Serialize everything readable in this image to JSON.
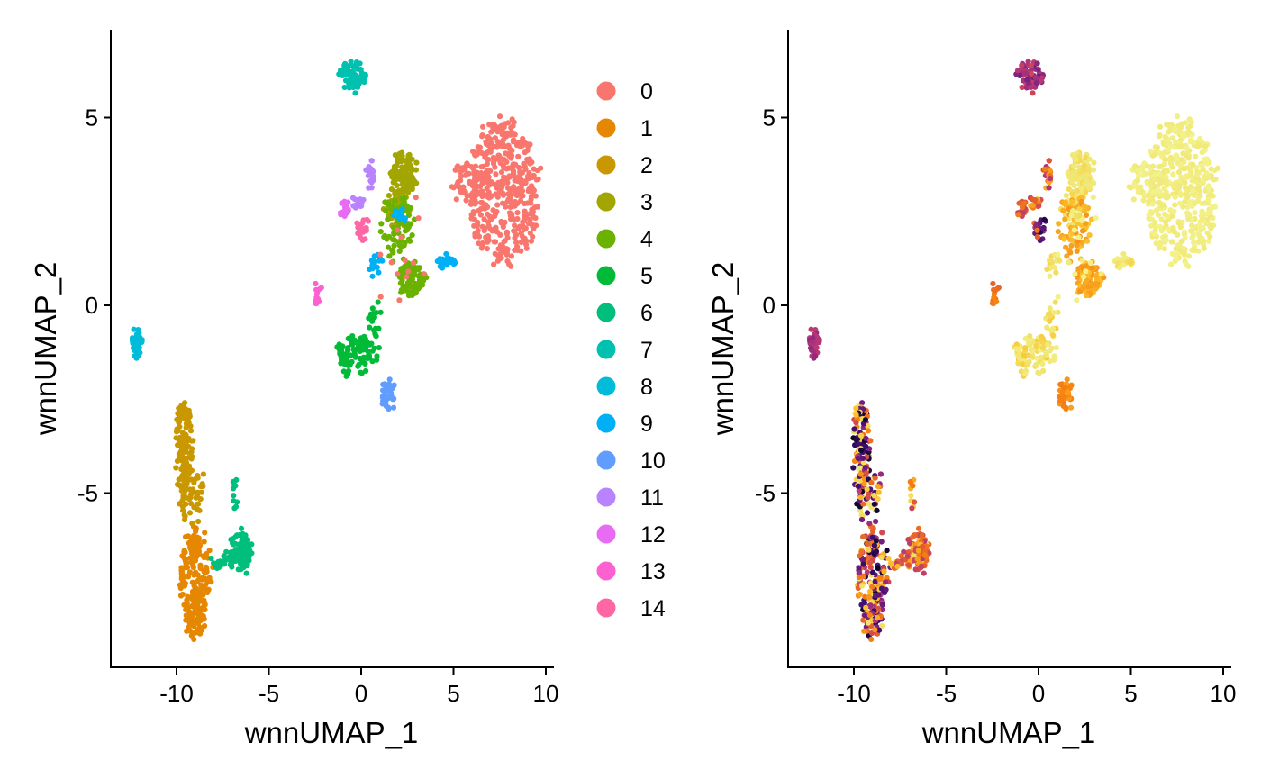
{
  "chart_data": [
    {
      "type": "scatter",
      "panel": "left",
      "color_by": "cluster",
      "xlabel": "wnnUMAP_1",
      "ylabel": "wnnUMAP_2",
      "xlim": [
        -13.8,
        10.6
      ],
      "ylim": [
        -9.7,
        7.3
      ],
      "xticks": [
        -10,
        -5,
        0,
        5,
        10
      ],
      "yticks": [
        -5,
        0,
        5
      ],
      "xtick_labels": [
        "-10",
        "-5",
        "0",
        "5",
        "10"
      ],
      "ytick_labels": [
        "-5",
        "0",
        "5"
      ],
      "grid": false,
      "legend_position": "right",
      "legend": [
        {
          "label": "0",
          "color": "#F8766D"
        },
        {
          "label": "1",
          "color": "#E58700"
        },
        {
          "label": "2",
          "color": "#C99800"
        },
        {
          "label": "3",
          "color": "#A3A500"
        },
        {
          "label": "4",
          "color": "#6BB100"
        },
        {
          "label": "5",
          "color": "#00BA38"
        },
        {
          "label": "6",
          "color": "#00BF7D"
        },
        {
          "label": "7",
          "color": "#00C0AF"
        },
        {
          "label": "8",
          "color": "#00BCD8"
        },
        {
          "label": "9",
          "color": "#00B0F6"
        },
        {
          "label": "10",
          "color": "#619CFF"
        },
        {
          "label": "11",
          "color": "#B983FF"
        },
        {
          "label": "12",
          "color": "#E76BF3"
        },
        {
          "label": "13",
          "color": "#FD61D1"
        },
        {
          "label": "14",
          "color": "#FF67A4"
        }
      ],
      "clusters": [
        {
          "cluster": "0",
          "cx": 7.7,
          "cy": 3.0,
          "rx": 1.9,
          "ry": 1.9,
          "n": 420
        },
        {
          "cluster": "0",
          "cx": 5.8,
          "cy": 3.3,
          "rx": 1.0,
          "ry": 0.55,
          "n": 60
        },
        {
          "cluster": "1",
          "cx": -9.0,
          "cy": -7.2,
          "rx": 0.85,
          "ry": 1.35,
          "n": 180
        },
        {
          "cluster": "1",
          "cx": -9.0,
          "cy": -8.4,
          "rx": 0.5,
          "ry": 0.45,
          "n": 40
        },
        {
          "cluster": "2",
          "cx": -9.6,
          "cy": -3.7,
          "rx": 0.5,
          "ry": 1.2,
          "n": 110
        },
        {
          "cluster": "2",
          "cx": -9.2,
          "cy": -5.0,
          "rx": 0.65,
          "ry": 0.8,
          "n": 60
        },
        {
          "cluster": "3",
          "cx": 2.3,
          "cy": 3.5,
          "rx": 0.7,
          "ry": 0.6,
          "n": 110
        },
        {
          "cluster": "3",
          "cx": 2.0,
          "cy": 2.6,
          "rx": 0.8,
          "ry": 0.5,
          "n": 40
        },
        {
          "cluster": "4",
          "cx": 2.7,
          "cy": 0.7,
          "rx": 0.8,
          "ry": 0.45,
          "n": 90
        },
        {
          "cluster": "4",
          "cx": 1.9,
          "cy": 2.1,
          "rx": 0.9,
          "ry": 0.9,
          "n": 70
        },
        {
          "cluster": "5",
          "cx": -0.3,
          "cy": -1.3,
          "rx": 1.0,
          "ry": 0.55,
          "n": 100
        },
        {
          "cluster": "5",
          "cx": 0.8,
          "cy": -0.6,
          "rx": 0.3,
          "ry": 0.6,
          "n": 20
        },
        {
          "cluster": "6",
          "cx": -6.5,
          "cy": -6.5,
          "rx": 0.55,
          "ry": 0.55,
          "n": 80
        },
        {
          "cluster": "6",
          "cx": -7.5,
          "cy": -6.8,
          "rx": 0.6,
          "ry": 0.25,
          "n": 25
        },
        {
          "cluster": "6",
          "cx": -6.9,
          "cy": -5.2,
          "rx": 0.15,
          "ry": 0.6,
          "n": 10
        },
        {
          "cluster": "7",
          "cx": -0.5,
          "cy": 6.1,
          "rx": 0.7,
          "ry": 0.4,
          "n": 80
        },
        {
          "cluster": "8",
          "cx": -12.2,
          "cy": -1.0,
          "rx": 0.3,
          "ry": 0.4,
          "n": 35
        },
        {
          "cluster": "9",
          "cx": 4.6,
          "cy": 1.15,
          "rx": 0.5,
          "ry": 0.15,
          "n": 25
        },
        {
          "cluster": "9",
          "cx": 0.8,
          "cy": 1.1,
          "rx": 0.3,
          "ry": 0.3,
          "n": 15
        },
        {
          "cluster": "9",
          "cx": 2.2,
          "cy": 2.4,
          "rx": 0.4,
          "ry": 0.2,
          "n": 15
        },
        {
          "cluster": "10",
          "cx": 1.5,
          "cy": -2.4,
          "rx": 0.4,
          "ry": 0.35,
          "n": 40
        },
        {
          "cluster": "11",
          "cx": 0.5,
          "cy": 3.5,
          "rx": 0.25,
          "ry": 0.35,
          "n": 20
        },
        {
          "cluster": "11",
          "cx": -0.2,
          "cy": 2.7,
          "rx": 0.3,
          "ry": 0.2,
          "n": 15
        },
        {
          "cluster": "12",
          "cx": -0.9,
          "cy": 2.6,
          "rx": 0.3,
          "ry": 0.25,
          "n": 25
        },
        {
          "cluster": "13",
          "cx": -2.3,
          "cy": 0.3,
          "rx": 0.25,
          "ry": 0.3,
          "n": 12
        },
        {
          "cluster": "14",
          "cx": 0.1,
          "cy": 2.0,
          "rx": 0.3,
          "ry": 0.3,
          "n": 25
        },
        {
          "cluster": "0",
          "cx": 2.0,
          "cy": 1.6,
          "rx": 1.8,
          "ry": 1.6,
          "n": 14
        }
      ]
    },
    {
      "type": "scatter",
      "panel": "right",
      "color_by": "continuous value (colour scale)",
      "xlabel": "wnnUMAP_1",
      "ylabel": "wnnUMAP_2",
      "xlim": [
        -13.8,
        10.6
      ],
      "ylim": [
        -9.7,
        7.3
      ],
      "xticks": [
        -10,
        -5,
        0,
        5,
        10
      ],
      "yticks": [
        -5,
        0,
        5
      ],
      "xtick_labels": [
        "-10",
        "-5",
        "0",
        "5",
        "10"
      ],
      "ytick_labels": [
        "-5",
        "0",
        "5"
      ],
      "grid": false,
      "legend_position": "none",
      "palette": [
        "#0B0724",
        "#3B0F6F",
        "#721F81",
        "#B5367A",
        "#E55C30",
        "#F78311",
        "#FBC52E",
        "#F0E774",
        "#F3F18A"
      ],
      "clusters": [
        {
          "cluster": "0",
          "level": 0.96,
          "spread": 0.06
        },
        {
          "cluster": "1",
          "level": 0.45,
          "spread": 0.45
        },
        {
          "cluster": "2",
          "level": 0.45,
          "spread": 0.45
        },
        {
          "cluster": "3",
          "level": 0.86,
          "spread": 0.05
        },
        {
          "cluster": "4",
          "level": 0.7,
          "spread": 0.05
        },
        {
          "cluster": "5",
          "level": 0.86,
          "spread": 0.1
        },
        {
          "cluster": "6",
          "level": 0.62,
          "spread": 0.25
        },
        {
          "cluster": "7",
          "level": 0.35,
          "spread": 0.1
        },
        {
          "cluster": "8",
          "level": 0.35,
          "spread": 0.05
        },
        {
          "cluster": "9",
          "level": 0.9,
          "spread": 0.1
        },
        {
          "cluster": "10",
          "level": 0.64,
          "spread": 0.05
        },
        {
          "cluster": "11",
          "level": 0.55,
          "spread": 0.2
        },
        {
          "cluster": "12",
          "level": 0.5,
          "spread": 0.15
        },
        {
          "cluster": "13",
          "level": 0.58,
          "spread": 0.08
        },
        {
          "cluster": "14",
          "level": 0.3,
          "spread": 0.3
        }
      ]
    }
  ]
}
